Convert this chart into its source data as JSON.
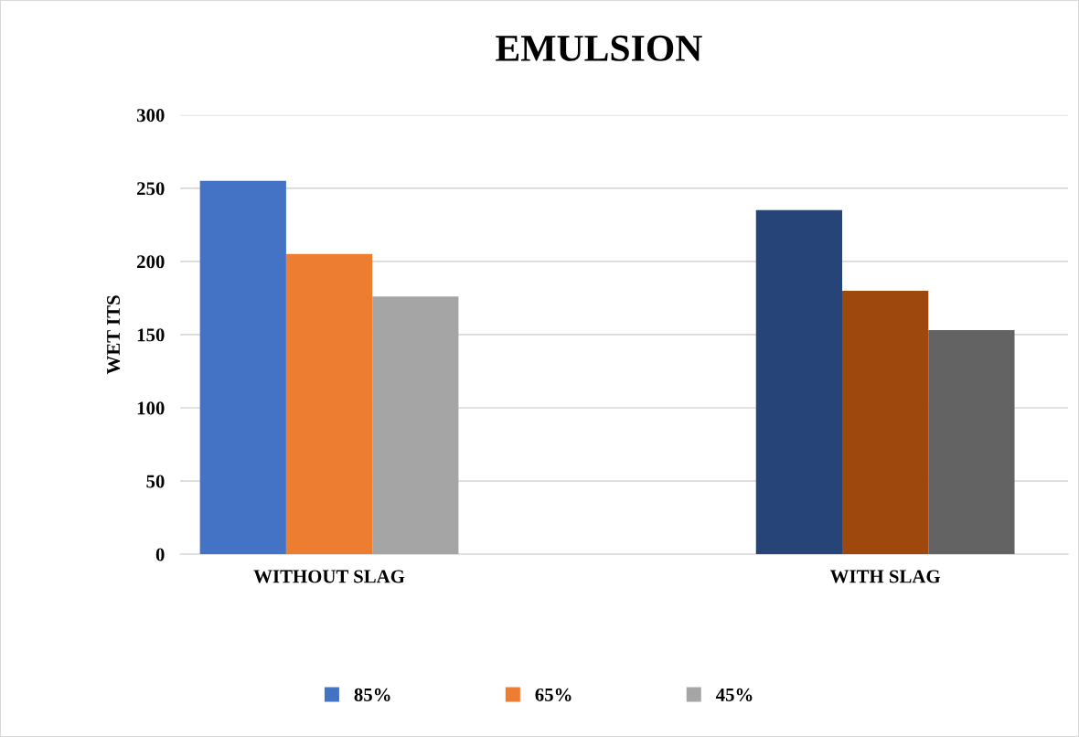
{
  "chart_data": {
    "type": "bar",
    "title": "EMULSION",
    "ylabel": "WET ITS",
    "categories": [
      "WITHOUT SLAG",
      "WITH SLAG"
    ],
    "series": [
      {
        "name": "85%",
        "color": "#4472c4",
        "colors": [
          "#4472c4",
          "#264478"
        ],
        "values": [
          255,
          235
        ]
      },
      {
        "name": "65%",
        "color": "#ed7d31",
        "colors": [
          "#ed7d31",
          "#9e480e"
        ],
        "values": [
          205,
          180
        ]
      },
      {
        "name": "45%",
        "color": "#a5a5a5",
        "colors": [
          "#a5a5a5",
          "#636363"
        ],
        "values": [
          176,
          153
        ]
      }
    ],
    "ylim": [
      0,
      300
    ],
    "yticks": [
      0,
      50,
      100,
      150,
      200,
      250,
      300
    ],
    "grid": "y",
    "legend": "bottom"
  }
}
